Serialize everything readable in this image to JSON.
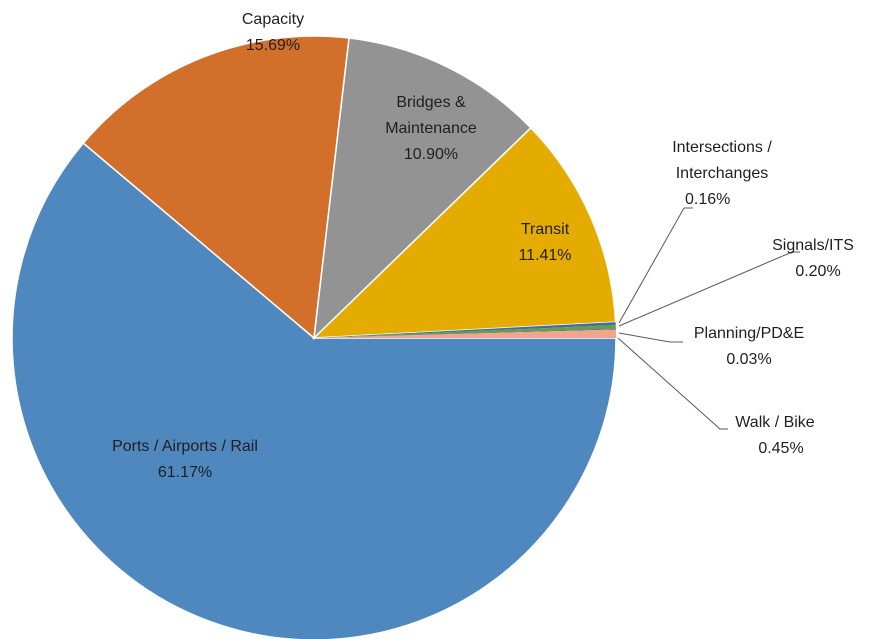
{
  "chart_data": {
    "type": "pie",
    "categories": [
      "Ports / Airports / Rail",
      "Capacity",
      "Bridges & Maintenance",
      "Transit",
      "Intersections / Interchanges",
      "Signals/ITS",
      "Planning/PD&E",
      "Walk / Bike"
    ],
    "values": [
      61.17,
      15.69,
      10.9,
      11.41,
      0.16,
      0.2,
      0.03,
      0.45
    ],
    "value_labels": [
      "61.17%",
      "15.69%",
      "10.90%",
      "11.41%",
      "0.16%",
      "0.20%",
      "0.03%",
      "0.45%"
    ],
    "colors": [
      "#4f87bf",
      "#d2702b",
      "#939393",
      "#e4ab00",
      "#3f6ea6",
      "#6a9c45",
      "#2d5d94",
      "#f2a48e"
    ]
  }
}
